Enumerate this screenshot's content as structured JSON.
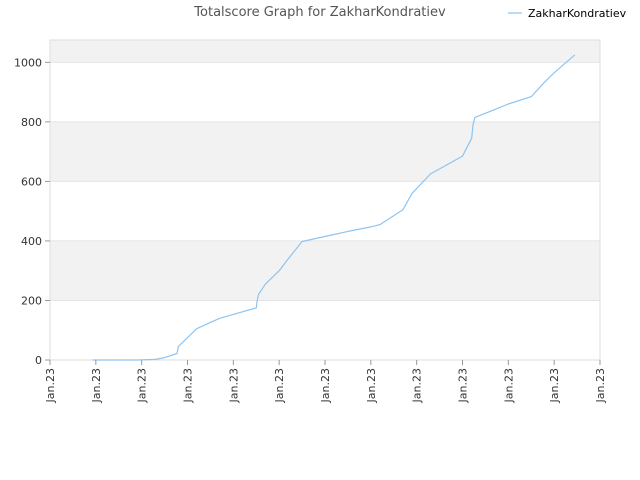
{
  "chart_data": {
    "type": "line",
    "title": "Totalscore Graph for ZakharKondratiev",
    "xlabel": "",
    "ylabel": "",
    "ylim": [
      0,
      1075
    ],
    "yticks": [
      0,
      200,
      400,
      600,
      800,
      1000
    ],
    "x_tick_labels": [
      "Jan.23",
      "Jan.23",
      "Jan.23",
      "Jan.23",
      "Jan.23",
      "Jan.23",
      "Jan.23",
      "Jan.23",
      "Jan.23",
      "Jan.23",
      "Jan.23",
      "Jan.23",
      "Jan.23"
    ],
    "x_range": [
      0,
      12
    ],
    "grid": "horizontal",
    "band_color": "#f2f2f2",
    "legend": {
      "position": "top-right"
    },
    "series": [
      {
        "name": "ZakharKondratiev",
        "color": "#8ec4f0",
        "x": [
          0.93,
          1.3,
          1.9,
          2.3,
          2.5,
          2.77,
          2.8,
          3.2,
          3.7,
          4.5,
          4.52,
          4.55,
          4.7,
          5.0,
          5.2,
          5.5,
          6.0,
          6.5,
          7.0,
          7.2,
          7.7,
          7.9,
          8.3,
          9.0,
          9.2,
          9.23,
          9.27,
          9.6,
          10.0,
          10.5,
          10.8,
          11.0,
          11.45
        ],
        "y": [
          0,
          0,
          0,
          2,
          8,
          22,
          45,
          105,
          140,
          175,
          200,
          220,
          255,
          300,
          340,
          398,
          415,
          432,
          447,
          455,
          505,
          560,
          625,
          685,
          745,
          790,
          815,
          835,
          860,
          885,
          935,
          965,
          1025
        ]
      }
    ]
  }
}
